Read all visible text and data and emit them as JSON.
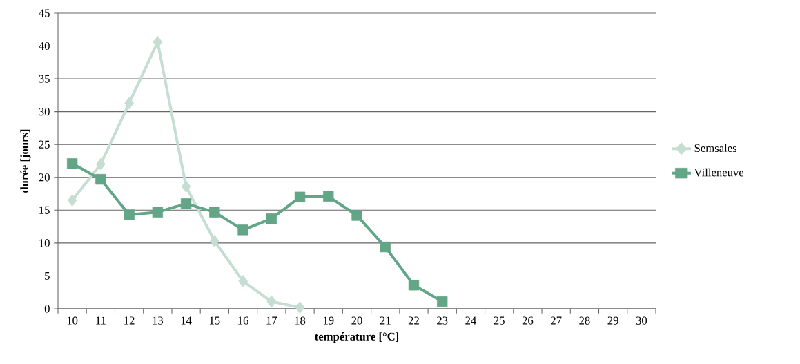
{
  "chart_data": {
    "type": "line",
    "xlabel": "température [°C]",
    "ylabel": "durée [jours]",
    "categories": [
      "10",
      "11",
      "12",
      "13",
      "14",
      "15",
      "16",
      "17",
      "18",
      "19",
      "20",
      "21",
      "22",
      "23",
      "24",
      "25",
      "26",
      "27",
      "28",
      "29",
      "30"
    ],
    "series": [
      {
        "name": "Semsales",
        "color": "#c6ddd2",
        "marker": "diamond",
        "values": [
          16.5,
          22.0,
          31.3,
          40.6,
          18.6,
          10.3,
          4.2,
          1.1,
          0.2,
          null,
          null,
          null,
          null,
          null,
          null,
          null,
          null,
          null,
          null,
          null,
          null
        ]
      },
      {
        "name": "Villeneuve",
        "color": "#63a587",
        "marker": "square",
        "values": [
          22.1,
          19.7,
          14.3,
          14.7,
          16.0,
          14.7,
          12.0,
          13.7,
          17.0,
          17.1,
          14.2,
          9.4,
          3.6,
          1.1,
          null,
          null,
          null,
          null,
          null,
          null,
          null
        ]
      }
    ],
    "ylim": [
      0,
      45
    ],
    "yticks": [
      0,
      5,
      10,
      15,
      20,
      25,
      30,
      35,
      40,
      45
    ],
    "grid": "y",
    "legend": "right",
    "line_style": "solid"
  }
}
